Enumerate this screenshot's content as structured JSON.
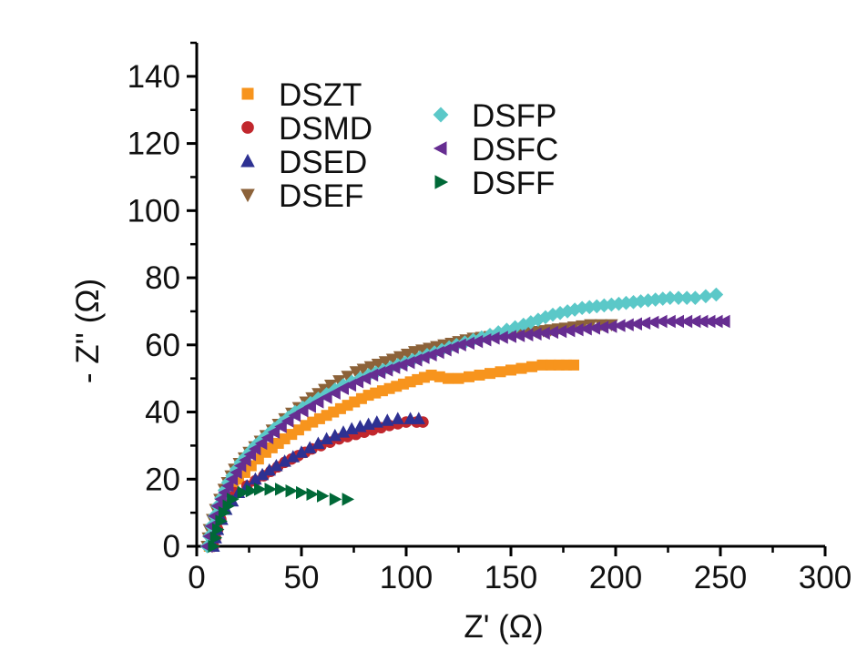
{
  "chart_data": {
    "type": "scatter",
    "xlabel": "Z' (Ω)",
    "ylabel": "- Z'' (Ω)",
    "xlim": [
      0,
      300
    ],
    "ylim": [
      0,
      150
    ],
    "xticks": [
      "0",
      "50",
      "100",
      "150",
      "200",
      "250",
      "300"
    ],
    "yticks": [
      "0",
      "20",
      "40",
      "60",
      "80",
      "100",
      "120",
      "140"
    ],
    "grid": false,
    "legend_position": "top-left",
    "series": [
      {
        "name": "DSZT",
        "marker": "square",
        "color": "#f7941d",
        "points": [
          [
            6,
            0
          ],
          [
            8,
            5
          ],
          [
            11,
            10
          ],
          [
            15,
            15
          ],
          [
            20,
            20
          ],
          [
            26,
            24
          ],
          [
            33,
            28
          ],
          [
            42,
            32
          ],
          [
            52,
            36
          ],
          [
            62,
            39
          ],
          [
            72,
            42
          ],
          [
            82,
            45
          ],
          [
            92,
            47
          ],
          [
            102,
            49
          ],
          [
            112,
            51
          ],
          [
            120,
            50
          ],
          [
            125,
            50
          ],
          [
            135,
            51
          ],
          [
            145,
            52
          ],
          [
            155,
            53
          ],
          [
            165,
            54
          ],
          [
            173,
            54
          ],
          [
            180,
            54
          ]
        ]
      },
      {
        "name": "DSMD",
        "marker": "circle",
        "color": "#c1272d",
        "points": [
          [
            8,
            0
          ],
          [
            10,
            5
          ],
          [
            13,
            11
          ],
          [
            18,
            16
          ],
          [
            24,
            18
          ],
          [
            32,
            21
          ],
          [
            42,
            25
          ],
          [
            55,
            29
          ],
          [
            68,
            32
          ],
          [
            80,
            34
          ],
          [
            92,
            36
          ],
          [
            100,
            37
          ],
          [
            105,
            37
          ],
          [
            108,
            37
          ]
        ]
      },
      {
        "name": "DSED",
        "marker": "triangle-up",
        "color": "#2e3192",
        "points": [
          [
            8,
            0
          ],
          [
            10,
            5
          ],
          [
            14,
            11
          ],
          [
            20,
            16
          ],
          [
            28,
            20
          ],
          [
            38,
            24
          ],
          [
            50,
            28
          ],
          [
            62,
            32
          ],
          [
            74,
            35
          ],
          [
            86,
            37
          ],
          [
            96,
            38
          ],
          [
            102,
            38
          ],
          [
            106,
            38
          ]
        ]
      },
      {
        "name": "DSEF",
        "marker": "triangle-down",
        "color": "#8c6239",
        "points": [
          [
            5,
            0
          ],
          [
            6,
            5
          ],
          [
            9,
            11
          ],
          [
            13,
            17
          ],
          [
            18,
            23
          ],
          [
            25,
            28
          ],
          [
            33,
            33
          ],
          [
            42,
            38
          ],
          [
            52,
            43
          ],
          [
            64,
            48
          ],
          [
            76,
            52
          ],
          [
            90,
            55
          ],
          [
            104,
            58
          ],
          [
            118,
            60
          ],
          [
            132,
            62
          ],
          [
            148,
            63
          ],
          [
            162,
            64
          ],
          [
            176,
            65
          ],
          [
            188,
            66
          ],
          [
            198,
            66
          ]
        ]
      },
      {
        "name": "DSFP",
        "marker": "diamond",
        "color": "#5bc8c8",
        "points": [
          [
            5,
            0
          ],
          [
            7,
            6
          ],
          [
            10,
            12
          ],
          [
            15,
            19
          ],
          [
            21,
            25
          ],
          [
            28,
            30
          ],
          [
            37,
            35
          ],
          [
            47,
            40
          ],
          [
            58,
            44
          ],
          [
            70,
            48
          ],
          [
            82,
            51
          ],
          [
            96,
            54
          ],
          [
            110,
            57
          ],
          [
            124,
            60
          ],
          [
            140,
            63
          ],
          [
            156,
            66
          ],
          [
            170,
            69
          ],
          [
            184,
            71
          ],
          [
            198,
            72
          ],
          [
            212,
            73
          ],
          [
            226,
            74
          ],
          [
            238,
            74
          ],
          [
            248,
            75
          ]
        ]
      },
      {
        "name": "DSFC",
        "marker": "triangle-left",
        "color": "#662d91",
        "points": [
          [
            5,
            0
          ],
          [
            7,
            6
          ],
          [
            10,
            12
          ],
          [
            15,
            18
          ],
          [
            21,
            24
          ],
          [
            28,
            29
          ],
          [
            37,
            34
          ],
          [
            47,
            39
          ],
          [
            58,
            43
          ],
          [
            70,
            47
          ],
          [
            84,
            51
          ],
          [
            98,
            54
          ],
          [
            112,
            57
          ],
          [
            126,
            60
          ],
          [
            142,
            62
          ],
          [
            158,
            63
          ],
          [
            174,
            64
          ],
          [
            190,
            65
          ],
          [
            206,
            66
          ],
          [
            222,
            67
          ],
          [
            238,
            67
          ],
          [
            252,
            67
          ]
        ]
      },
      {
        "name": "DSFF",
        "marker": "triangle-right",
        "color": "#006837",
        "points": [
          [
            8,
            0
          ],
          [
            10,
            5
          ],
          [
            13,
            10
          ],
          [
            17,
            14
          ],
          [
            22,
            16
          ],
          [
            30,
            17
          ],
          [
            40,
            17
          ],
          [
            50,
            16
          ],
          [
            60,
            15
          ],
          [
            66,
            14
          ],
          [
            72,
            14
          ]
        ]
      }
    ]
  }
}
